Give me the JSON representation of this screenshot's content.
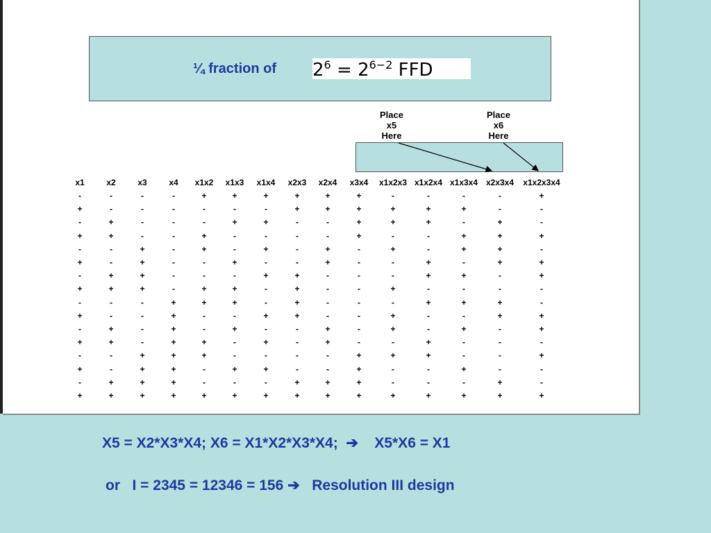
{
  "title": {
    "text": "¼ fraction of",
    "formula": {
      "lhs_base": "2",
      "lhs_exp": "6",
      "equals": "=",
      "rhs_base": "2",
      "rhs_exp": "6−2",
      "suffix": "FFD"
    }
  },
  "notes": [
    {
      "lines": [
        "Place",
        "x5",
        "Here"
      ]
    },
    {
      "lines": [
        "Place",
        "x6",
        "Here"
      ]
    }
  ],
  "table": {
    "headers": [
      "x1",
      "x2",
      "x3",
      "x4",
      "x1x2",
      "x1x3",
      "x1x4",
      "x2x3",
      "x2x4",
      "x3x4",
      "x1x2x3",
      "x1x2x4",
      "x1x3x4",
      "x2x3x4",
      "x1x2x3x4"
    ],
    "rows": [
      [
        "-",
        "-",
        "-",
        "-",
        "+",
        "+",
        "+",
        "+",
        "+",
        "+",
        "-",
        "-",
        "-",
        "-",
        "+"
      ],
      [
        "+",
        "-",
        "-",
        "-",
        "-",
        "-",
        "-",
        "+",
        "+",
        "+",
        "+",
        "+",
        "+",
        "-",
        "-"
      ],
      [
        "-",
        "+",
        "-",
        "-",
        "-",
        "+",
        "+",
        "-",
        "-",
        "+",
        "+",
        "+",
        "-",
        "+",
        "-"
      ],
      [
        "+",
        "+",
        "-",
        "-",
        "+",
        "-",
        "-",
        "-",
        "-",
        "+",
        "-",
        "-",
        "+",
        "+",
        "+"
      ],
      [
        "-",
        "-",
        "+",
        "-",
        "+",
        "-",
        "+",
        "-",
        "+",
        "-",
        "+",
        "-",
        "+",
        "+",
        "-"
      ],
      [
        "+",
        "-",
        "+",
        "-",
        "-",
        "+",
        "-",
        "-",
        "+",
        "-",
        "-",
        "+",
        "-",
        "+",
        "+"
      ],
      [
        "-",
        "+",
        "+",
        "-",
        "-",
        "-",
        "+",
        "+",
        "-",
        "-",
        "-",
        "+",
        "+",
        "-",
        "+"
      ],
      [
        "+",
        "+",
        "+",
        "-",
        "+",
        "+",
        "-",
        "+",
        "-",
        "-",
        "+",
        "-",
        "-",
        "-",
        "-"
      ],
      [
        "-",
        "-",
        "-",
        "+",
        "+",
        "+",
        "-",
        "+",
        "-",
        "-",
        "-",
        "+",
        "+",
        "+",
        "-"
      ],
      [
        "+",
        "-",
        "-",
        "+",
        "-",
        "-",
        "+",
        "+",
        "-",
        "-",
        "+",
        "-",
        "-",
        "+",
        "+"
      ],
      [
        "-",
        "+",
        "-",
        "+",
        "-",
        "+",
        "-",
        "-",
        "+",
        "-",
        "+",
        "-",
        "+",
        "-",
        "+"
      ],
      [
        "+",
        "+",
        "-",
        "+",
        "+",
        "-",
        "+",
        "-",
        "+",
        "-",
        "-",
        "+",
        "-",
        "-",
        "-"
      ],
      [
        "-",
        "-",
        "+",
        "+",
        "+",
        "-",
        "-",
        "-",
        "-",
        "+",
        "+",
        "+",
        "-",
        "-",
        "+"
      ],
      [
        "+",
        "-",
        "+",
        "+",
        "-",
        "+",
        "+",
        "-",
        "-",
        "+",
        "-",
        "-",
        "+",
        "-",
        "-"
      ],
      [
        "-",
        "+",
        "+",
        "+",
        "-",
        "-",
        "-",
        "+",
        "+",
        "+",
        "-",
        "-",
        "-",
        "+",
        "-"
      ],
      [
        "+",
        "+",
        "+",
        "+",
        "+",
        "+",
        "+",
        "+",
        "+",
        "+",
        "+",
        "+",
        "+",
        "+",
        "+"
      ]
    ]
  },
  "footer": [
    "X5 = X2*X3*X4; X6 = X1*X2*X3*X4;  ➔    X5*X6 = X1",
    "or   I = 2345 = 12346 = 156 ➔   Resolution III design"
  ]
}
